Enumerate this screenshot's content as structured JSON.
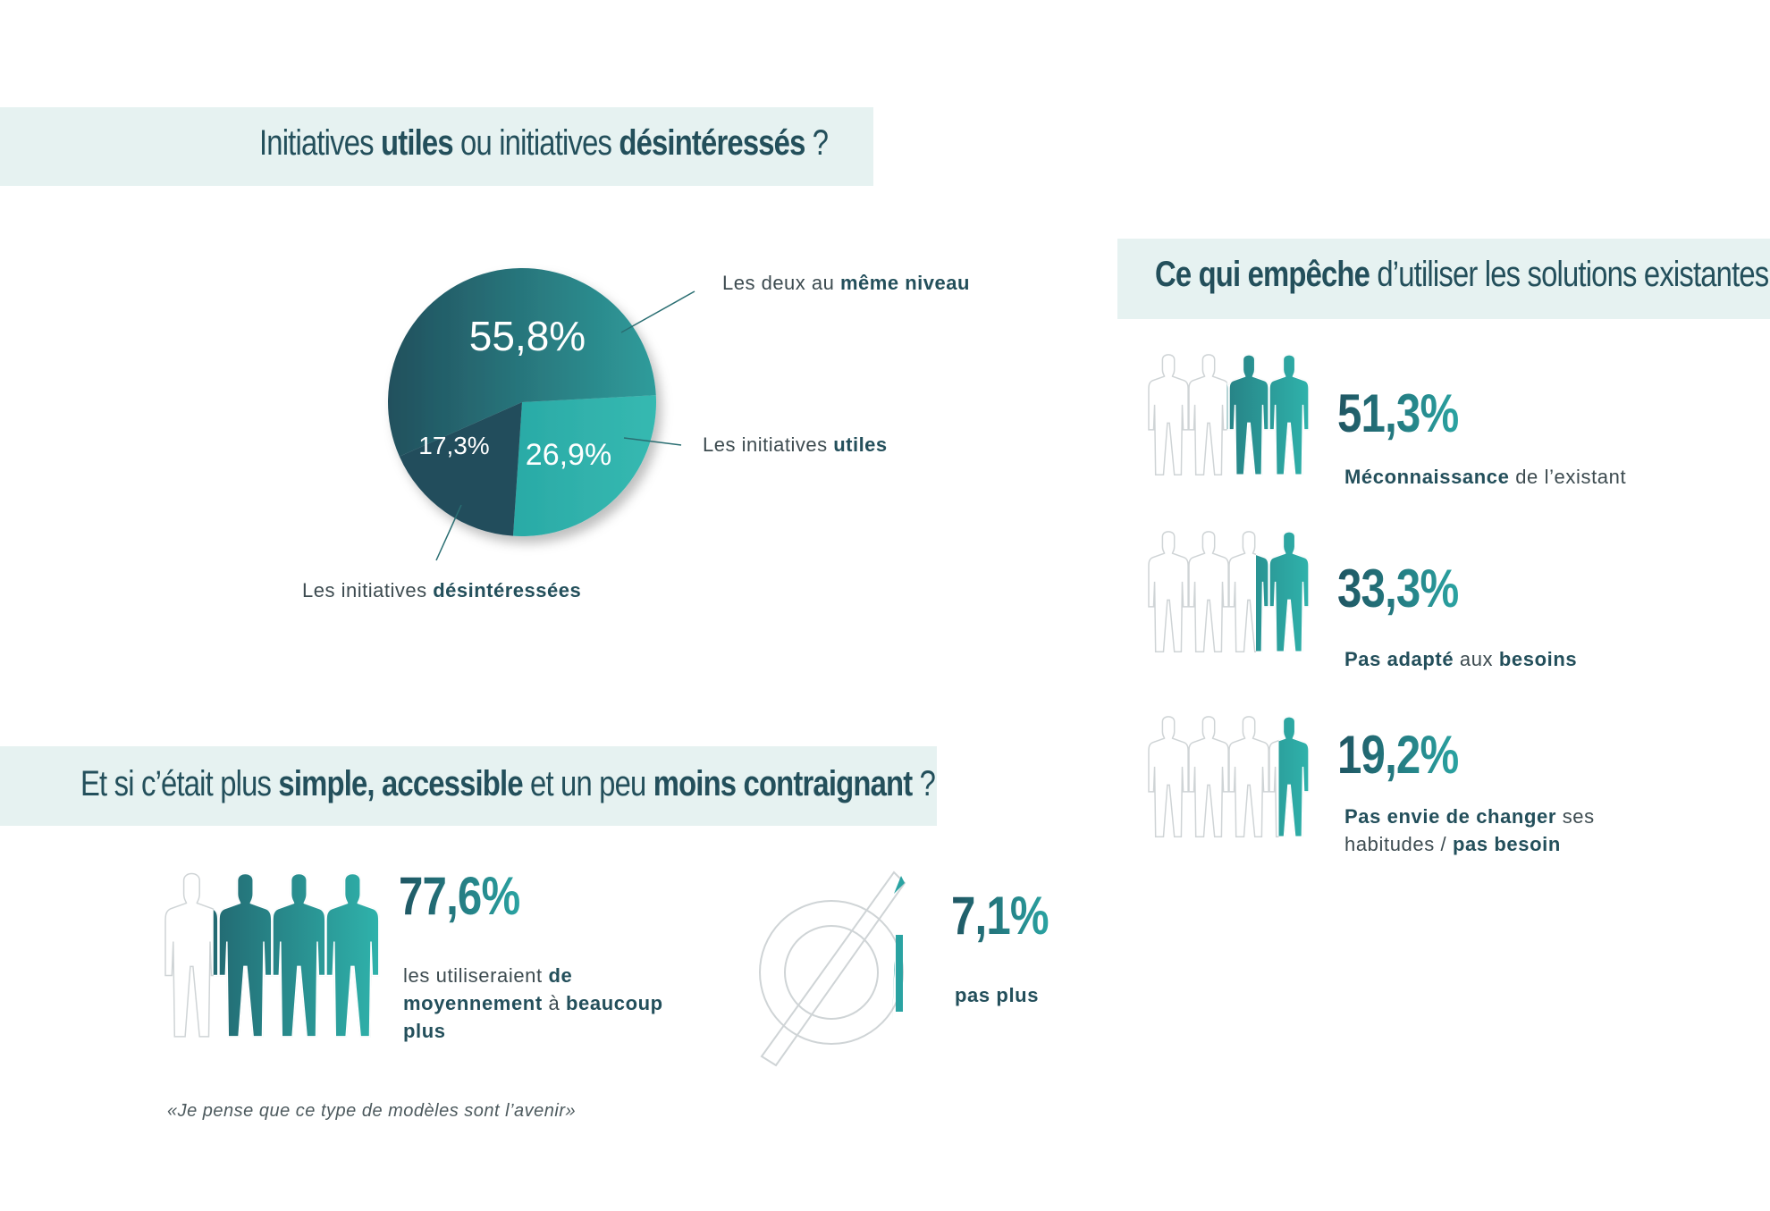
{
  "sections": {
    "initiatives": {
      "t1": "Initiatives ",
      "b1": "utiles",
      "t2": " ou initiatives ",
      "b2": "désintéressés",
      "t3": " ?"
    },
    "obstacles": {
      "b1": "Ce qui empêche",
      "t1": " d’utiliser les solutions existantes"
    },
    "simple": {
      "t1": "Et si c’était plus ",
      "b1": "simple, accessible",
      "t2": " et un peu ",
      "b2": "moins contraignant",
      "t3": " ?"
    }
  },
  "chart_data": [
    {
      "type": "pie",
      "slices": [
        {
          "label": "Les deux au même niveau",
          "value": 55.8,
          "value_text": "55,8%",
          "label_plain": "Les deux au ",
          "label_bold": "même niveau",
          "color": "#1f5a66"
        },
        {
          "label": "Les initiatives utiles",
          "value": 26.9,
          "value_text": "26,9%",
          "label_plain": "Les initiatives ",
          "label_bold": "utiles",
          "color": "#2fb0aa"
        },
        {
          "label": "Les initiatives désintéressées",
          "value": 17.3,
          "value_text": "17,3%",
          "label_plain": "Les initiatives ",
          "label_bold": "désintéressées",
          "color": "#234d5c"
        }
      ]
    },
    {
      "type": "bar",
      "title": "Ce qui empêche d’utiliser les solutions existantes",
      "items": [
        {
          "value": 51.3,
          "value_text": "51,3%",
          "bold1": "Méconnaissance",
          "plain1": " de l’existant"
        },
        {
          "value": 33.3,
          "value_text": "33,3%",
          "bold1": "Pas adapté",
          "plain1": " aux ",
          "bold2": "besoins"
        },
        {
          "value": 19.2,
          "value_text": "19,2%",
          "bold1": "Pas envie de changer",
          "plain1": " ses habitudes / ",
          "bold2": "pas besoin"
        }
      ]
    },
    {
      "type": "bar",
      "title": "Et si c’était plus simple, accessible et un peu moins contraignant ?",
      "items": [
        {
          "value": 77.6,
          "value_text": "77,6%",
          "plain1": "les utiliseraient ",
          "bold1": "de moyennement",
          "plain2": " à ",
          "bold2": "beaucoup plus"
        },
        {
          "value": 7.1,
          "value_text": "7,1%",
          "bold1": "pas plus"
        }
      ]
    }
  ],
  "quote": "«Je pense que ce type de modèles sont l’avenir»",
  "colors": {
    "dark": "#1f5562",
    "accent": "#2fb0aa",
    "band": "#e6f2f1"
  },
  "icons": [
    "people-silhouette-icon",
    "empty-set-icon"
  ]
}
